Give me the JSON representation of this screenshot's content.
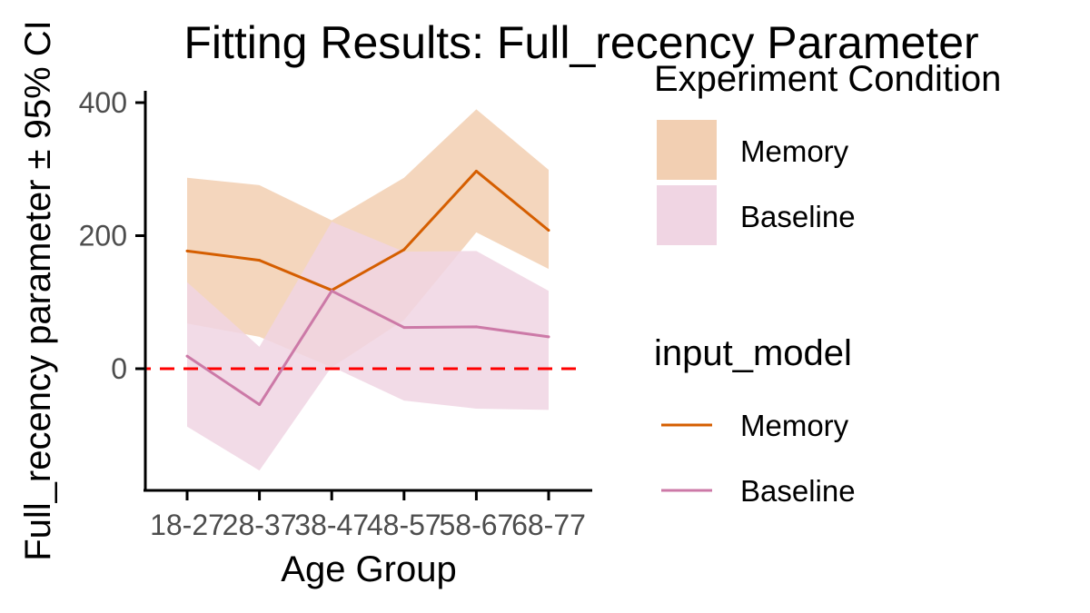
{
  "chart_data": {
    "type": "line",
    "title": "Fitting Results: Full_recency Parameter",
    "xlabel": "Age Group",
    "ylabel": "Full_recency parameter ± 95% CI",
    "categories": [
      "18-27",
      "28-37",
      "38-47",
      "48-57",
      "58-67",
      "68-77"
    ],
    "yticks": [
      0,
      200,
      400
    ],
    "ylim": [
      -180,
      410
    ],
    "grid": false,
    "reference_line": {
      "y": 0,
      "color": "#ff0000",
      "style": "dashed"
    },
    "series": [
      {
        "name": "Memory",
        "color": "#d55e00",
        "ribbon_color": "#f2cfb2",
        "values": [
          177,
          163,
          118,
          179,
          297,
          208
        ],
        "lower": [
          68,
          48,
          2,
          73,
          205,
          150
        ],
        "upper": [
          287,
          276,
          223,
          287,
          390,
          299
        ]
      },
      {
        "name": "Baseline",
        "color": "#cc79a7",
        "ribbon_color": "#f0d5e3",
        "values": [
          19,
          -54,
          117,
          62,
          63,
          48
        ],
        "lower": [
          -87,
          -153,
          3,
          -48,
          -60,
          -62
        ],
        "upper": [
          130,
          33,
          221,
          176,
          177,
          117
        ]
      }
    ],
    "legends": [
      {
        "title": "Experiment Condition",
        "kind": "fill",
        "items": [
          "Memory",
          "Baseline"
        ]
      },
      {
        "title": "input_model",
        "kind": "line",
        "items": [
          "Memory",
          "Baseline"
        ]
      }
    ],
    "legend_position": "right"
  }
}
